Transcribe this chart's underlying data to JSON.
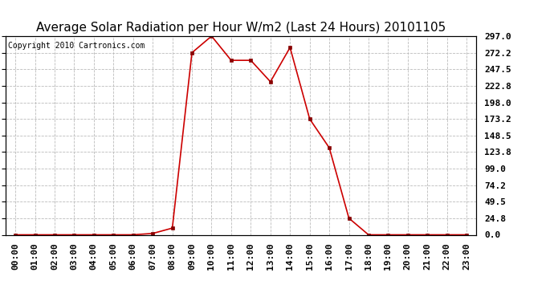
{
  "title": "Average Solar Radiation per Hour W/m2 (Last 24 Hours) 20101105",
  "copyright": "Copyright 2010 Cartronics.com",
  "x_labels": [
    "00:00",
    "01:00",
    "02:00",
    "03:00",
    "04:00",
    "05:00",
    "06:00",
    "07:00",
    "08:00",
    "09:00",
    "10:00",
    "11:00",
    "12:00",
    "13:00",
    "14:00",
    "15:00",
    "16:00",
    "17:00",
    "18:00",
    "19:00",
    "20:00",
    "21:00",
    "22:00",
    "23:00"
  ],
  "y_values": [
    0,
    0,
    0,
    0,
    0,
    0,
    0,
    2,
    10,
    272.2,
    297.0,
    260.8,
    260.8,
    228.8,
    280.0,
    173.2,
    130.0,
    24.8,
    0,
    0,
    0,
    0,
    0,
    0
  ],
  "y_ticks": [
    0.0,
    24.8,
    49.5,
    74.2,
    99.0,
    123.8,
    148.5,
    173.2,
    198.0,
    222.8,
    247.5,
    272.2,
    297.0
  ],
  "line_color": "#cc0000",
  "marker_color": "#880000",
  "bg_color": "#ffffff",
  "plot_bg_color": "#ffffff",
  "grid_color": "#bbbbbb",
  "title_fontsize": 11,
  "copyright_fontsize": 7,
  "tick_fontsize": 8,
  "y_max": 297.0,
  "y_min": 0.0
}
